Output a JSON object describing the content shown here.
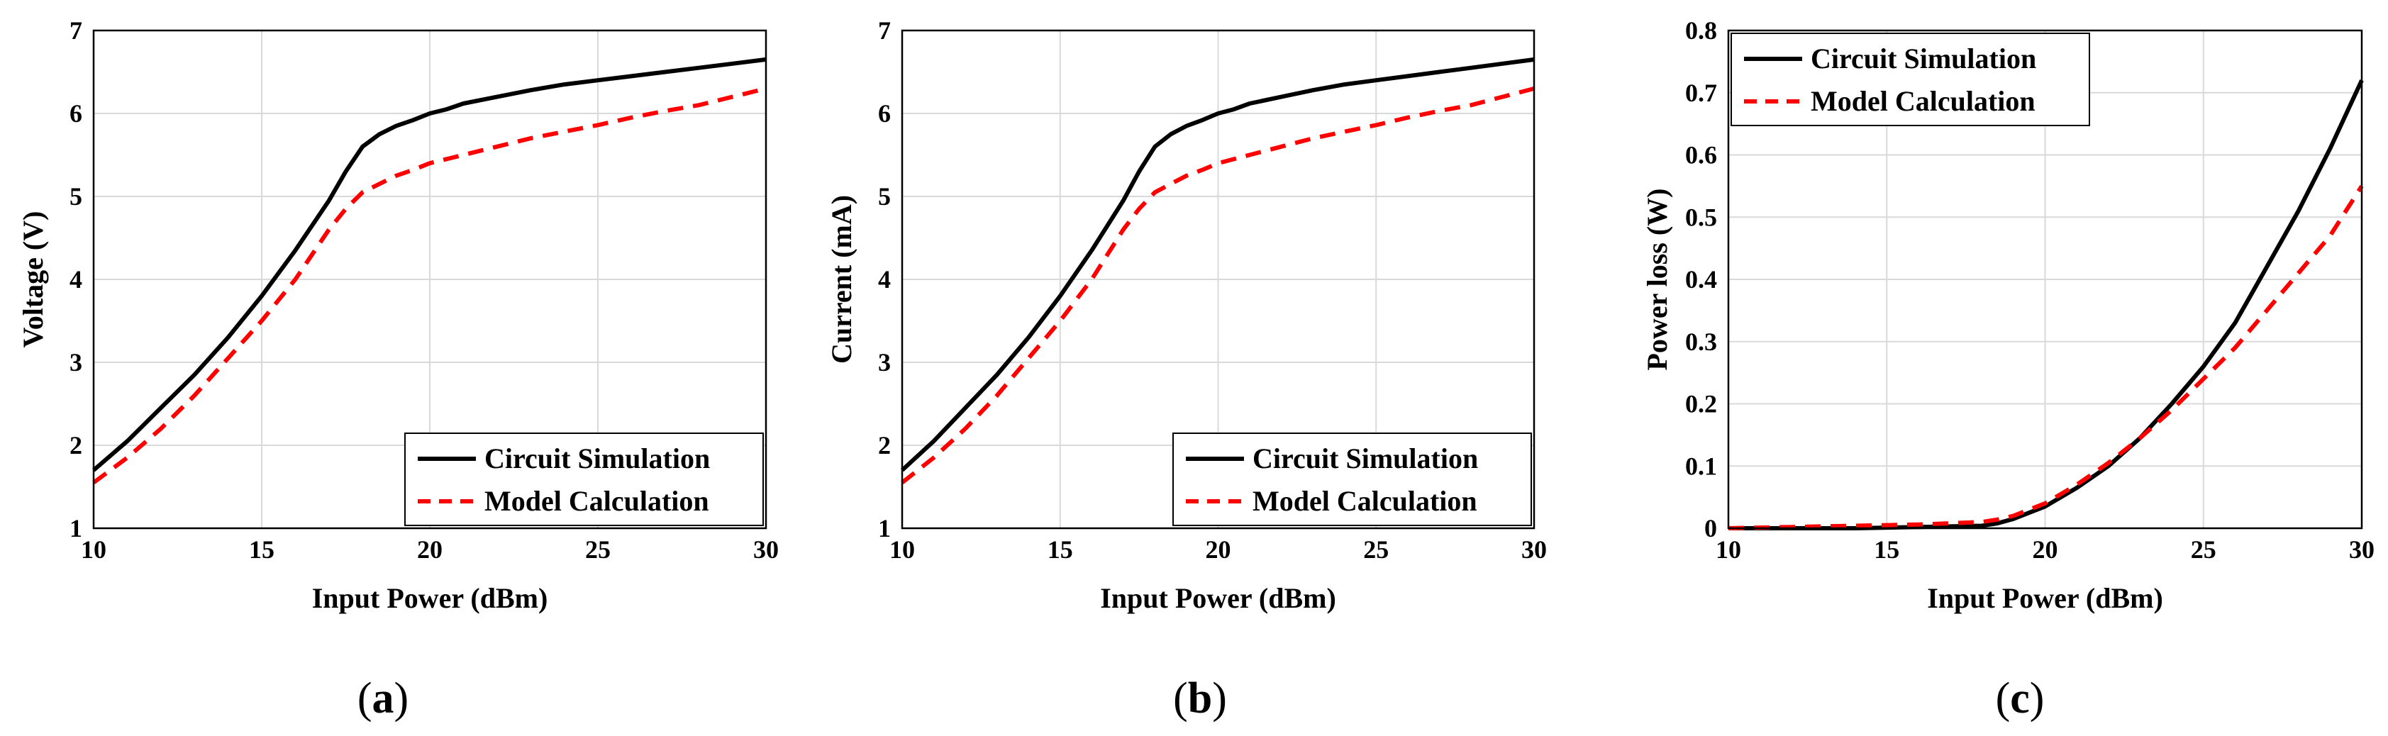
{
  "colors": {
    "circuit": "#000000",
    "model": "#ff0000",
    "grid": "#d9d9d9"
  },
  "panels": [
    {
      "id": "a",
      "label_letter": "a",
      "label_open": "(",
      "label_close": ")"
    },
    {
      "id": "b",
      "label_letter": "b",
      "label_open": "(",
      "label_close": ")"
    },
    {
      "id": "c",
      "label_letter": "c",
      "label_open": "(",
      "label_close": ")"
    }
  ],
  "chart_data": [
    {
      "type": "line",
      "title": "",
      "xlabel": "Input Power (dBm)",
      "ylabel": "Voltage (V)",
      "xlim": [
        10,
        30
      ],
      "ylim": [
        1,
        7
      ],
      "xticks": [
        10,
        15,
        20,
        25,
        30
      ],
      "yticks": [
        1,
        2,
        3,
        4,
        5,
        6,
        7
      ],
      "grid": true,
      "legend": "bottom-right",
      "series": [
        {
          "name": "Circuit Simulation",
          "style": "solid",
          "x": [
            10,
            11,
            12,
            13,
            14,
            15,
            16,
            17,
            17.5,
            18,
            18.5,
            19,
            19.5,
            20,
            20.5,
            21,
            22,
            23,
            24,
            25,
            26,
            27,
            28,
            29,
            30
          ],
          "y": [
            1.7,
            2.05,
            2.45,
            2.85,
            3.3,
            3.8,
            4.35,
            4.95,
            5.3,
            5.6,
            5.75,
            5.85,
            5.92,
            6.0,
            6.05,
            6.12,
            6.2,
            6.28,
            6.35,
            6.4,
            6.45,
            6.5,
            6.55,
            6.6,
            6.65
          ]
        },
        {
          "name": "Model Calculation",
          "style": "dashed",
          "x": [
            10,
            11,
            12,
            13,
            14,
            15,
            16,
            17,
            17.5,
            18,
            18.5,
            19,
            19.5,
            20,
            21,
            22,
            23,
            24,
            25,
            26,
            27,
            28,
            29,
            30
          ],
          "y": [
            1.55,
            1.85,
            2.2,
            2.6,
            3.05,
            3.5,
            4.0,
            4.6,
            4.85,
            5.05,
            5.15,
            5.25,
            5.32,
            5.4,
            5.5,
            5.6,
            5.7,
            5.78,
            5.86,
            5.95,
            6.03,
            6.1,
            6.2,
            6.3
          ]
        }
      ]
    },
    {
      "type": "line",
      "title": "",
      "xlabel": "Input Power (dBm)",
      "ylabel": "Current (mA)",
      "xlim": [
        10,
        30
      ],
      "ylim": [
        1,
        7
      ],
      "xticks": [
        10,
        15,
        20,
        25,
        30
      ],
      "yticks": [
        1,
        2,
        3,
        4,
        5,
        6,
        7
      ],
      "grid": true,
      "legend": "bottom-right",
      "series": [
        {
          "name": "Circuit Simulation",
          "style": "solid",
          "x": [
            10,
            11,
            12,
            13,
            14,
            15,
            16,
            17,
            17.5,
            18,
            18.5,
            19,
            19.5,
            20,
            20.5,
            21,
            22,
            23,
            24,
            25,
            26,
            27,
            28,
            29,
            30
          ],
          "y": [
            1.7,
            2.05,
            2.45,
            2.85,
            3.3,
            3.8,
            4.35,
            4.95,
            5.3,
            5.6,
            5.75,
            5.85,
            5.92,
            6.0,
            6.05,
            6.12,
            6.2,
            6.28,
            6.35,
            6.4,
            6.45,
            6.5,
            6.55,
            6.6,
            6.65
          ]
        },
        {
          "name": "Model Calculation",
          "style": "dashed",
          "x": [
            10,
            11,
            12,
            13,
            14,
            15,
            16,
            17,
            17.5,
            18,
            18.5,
            19,
            19.5,
            20,
            21,
            22,
            23,
            24,
            25,
            26,
            27,
            28,
            29,
            30
          ],
          "y": [
            1.55,
            1.85,
            2.2,
            2.6,
            3.05,
            3.5,
            4.0,
            4.6,
            4.85,
            5.05,
            5.15,
            5.25,
            5.32,
            5.4,
            5.5,
            5.6,
            5.7,
            5.78,
            5.86,
            5.95,
            6.03,
            6.1,
            6.2,
            6.3
          ]
        }
      ]
    },
    {
      "type": "line",
      "title": "",
      "xlabel": "Input Power (dBm)",
      "ylabel": "Power loss (W)",
      "xlim": [
        10,
        30
      ],
      "ylim": [
        0,
        0.8
      ],
      "xticks": [
        10,
        15,
        20,
        25,
        30
      ],
      "yticks": [
        0,
        0.1,
        0.2,
        0.3,
        0.4,
        0.5,
        0.6,
        0.7,
        0.8
      ],
      "grid": true,
      "legend": "top-left",
      "series": [
        {
          "name": "Circuit Simulation",
          "style": "solid",
          "x": [
            10,
            12,
            14,
            16,
            17,
            18,
            18.5,
            19,
            20,
            21,
            22,
            23,
            24,
            25,
            26,
            27,
            28,
            29,
            30
          ],
          "y": [
            0,
            0,
            0,
            0.002,
            0.003,
            0.004,
            0.008,
            0.015,
            0.035,
            0.065,
            0.1,
            0.145,
            0.2,
            0.26,
            0.33,
            0.42,
            0.51,
            0.61,
            0.72
          ]
        },
        {
          "name": "Model Calculation",
          "style": "dashed",
          "x": [
            10,
            12,
            14,
            16,
            17,
            18,
            18.5,
            19,
            20,
            21,
            22,
            23,
            24,
            25,
            26,
            27,
            28,
            29,
            30
          ],
          "y": [
            0,
            0.002,
            0.004,
            0.006,
            0.008,
            0.01,
            0.014,
            0.02,
            0.04,
            0.07,
            0.105,
            0.145,
            0.19,
            0.24,
            0.29,
            0.35,
            0.41,
            0.47,
            0.55
          ]
        }
      ]
    }
  ]
}
